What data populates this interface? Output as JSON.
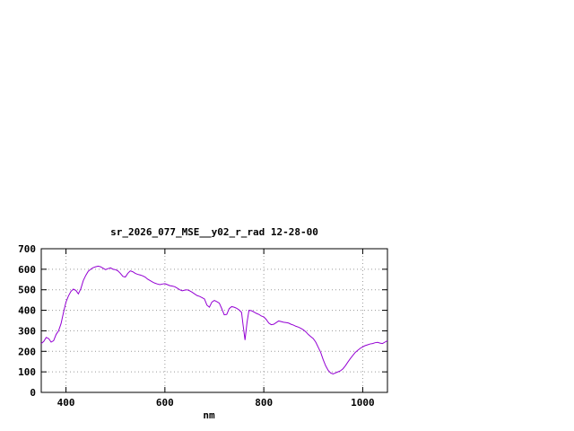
{
  "page": {
    "background": "#ffffff"
  },
  "chart_data": {
    "type": "line",
    "title": "sr_2026_077_MSE__y02_r_rad 12-28-00",
    "xlabel": "nm",
    "ylabel": "",
    "xlim": [
      350,
      1050
    ],
    "ylim": [
      0,
      700
    ],
    "xticks": [
      400,
      600,
      800,
      1000
    ],
    "yticks": [
      0,
      100,
      200,
      300,
      400,
      500,
      600,
      700
    ],
    "grid": true,
    "legend_position": "none",
    "line_color": "#9400d3",
    "series": [
      {
        "points": [
          [
            350,
            238
          ],
          [
            355,
            248
          ],
          [
            360,
            268
          ],
          [
            365,
            262
          ],
          [
            370,
            245
          ],
          [
            375,
            252
          ],
          [
            380,
            282
          ],
          [
            385,
            300
          ],
          [
            390,
            335
          ],
          [
            395,
            390
          ],
          [
            400,
            440
          ],
          [
            405,
            470
          ],
          [
            410,
            492
          ],
          [
            415,
            503
          ],
          [
            420,
            497
          ],
          [
            425,
            480
          ],
          [
            430,
            505
          ],
          [
            435,
            545
          ],
          [
            440,
            570
          ],
          [
            445,
            590
          ],
          [
            450,
            600
          ],
          [
            455,
            608
          ],
          [
            460,
            612
          ],
          [
            465,
            615
          ],
          [
            470,
            612
          ],
          [
            475,
            605
          ],
          [
            480,
            598
          ],
          [
            485,
            603
          ],
          [
            490,
            607
          ],
          [
            495,
            600
          ],
          [
            500,
            598
          ],
          [
            505,
            592
          ],
          [
            510,
            580
          ],
          [
            515,
            565
          ],
          [
            520,
            562
          ],
          [
            525,
            580
          ],
          [
            530,
            592
          ],
          [
            535,
            588
          ],
          [
            540,
            580
          ],
          [
            545,
            575
          ],
          [
            550,
            572
          ],
          [
            555,
            568
          ],
          [
            560,
            562
          ],
          [
            565,
            552
          ],
          [
            570,
            545
          ],
          [
            575,
            538
          ],
          [
            580,
            532
          ],
          [
            585,
            528
          ],
          [
            590,
            525
          ],
          [
            595,
            528
          ],
          [
            600,
            530
          ],
          [
            605,
            525
          ],
          [
            610,
            520
          ],
          [
            615,
            518
          ],
          [
            620,
            515
          ],
          [
            625,
            508
          ],
          [
            630,
            500
          ],
          [
            635,
            495
          ],
          [
            640,
            498
          ],
          [
            645,
            500
          ],
          [
            650,
            495
          ],
          [
            655,
            488
          ],
          [
            660,
            480
          ],
          [
            665,
            472
          ],
          [
            670,
            468
          ],
          [
            675,
            462
          ],
          [
            680,
            455
          ],
          [
            685,
            425
          ],
          [
            690,
            415
          ],
          [
            695,
            440
          ],
          [
            700,
            448
          ],
          [
            705,
            442
          ],
          [
            710,
            435
          ],
          [
            715,
            408
          ],
          [
            720,
            378
          ],
          [
            725,
            380
          ],
          [
            730,
            408
          ],
          [
            735,
            418
          ],
          [
            740,
            415
          ],
          [
            745,
            410
          ],
          [
            750,
            402
          ],
          [
            755,
            390
          ],
          [
            758,
            330
          ],
          [
            762,
            255
          ],
          [
            766,
            340
          ],
          [
            770,
            400
          ],
          [
            775,
            398
          ],
          [
            780,
            392
          ],
          [
            785,
            385
          ],
          [
            790,
            380
          ],
          [
            795,
            372
          ],
          [
            800,
            368
          ],
          [
            805,
            355
          ],
          [
            810,
            338
          ],
          [
            815,
            330
          ],
          [
            820,
            332
          ],
          [
            825,
            340
          ],
          [
            830,
            348
          ],
          [
            835,
            345
          ],
          [
            840,
            342
          ],
          [
            845,
            340
          ],
          [
            850,
            338
          ],
          [
            855,
            332
          ],
          [
            860,
            328
          ],
          [
            865,
            322
          ],
          [
            870,
            318
          ],
          [
            875,
            312
          ],
          [
            880,
            305
          ],
          [
            885,
            295
          ],
          [
            890,
            282
          ],
          [
            895,
            272
          ],
          [
            900,
            262
          ],
          [
            905,
            245
          ],
          [
            910,
            220
          ],
          [
            915,
            195
          ],
          [
            920,
            160
          ],
          [
            925,
            130
          ],
          [
            930,
            108
          ],
          [
            935,
            95
          ],
          [
            940,
            90
          ],
          [
            945,
            95
          ],
          [
            950,
            100
          ],
          [
            955,
            105
          ],
          [
            960,
            115
          ],
          [
            965,
            130
          ],
          [
            970,
            148
          ],
          [
            975,
            165
          ],
          [
            980,
            180
          ],
          [
            985,
            195
          ],
          [
            990,
            205
          ],
          [
            995,
            215
          ],
          [
            1000,
            222
          ],
          [
            1005,
            228
          ],
          [
            1010,
            232
          ],
          [
            1015,
            236
          ],
          [
            1020,
            238
          ],
          [
            1025,
            242
          ],
          [
            1030,
            244
          ],
          [
            1035,
            240
          ],
          [
            1040,
            238
          ],
          [
            1045,
            245
          ],
          [
            1050,
            252
          ]
        ]
      }
    ]
  }
}
